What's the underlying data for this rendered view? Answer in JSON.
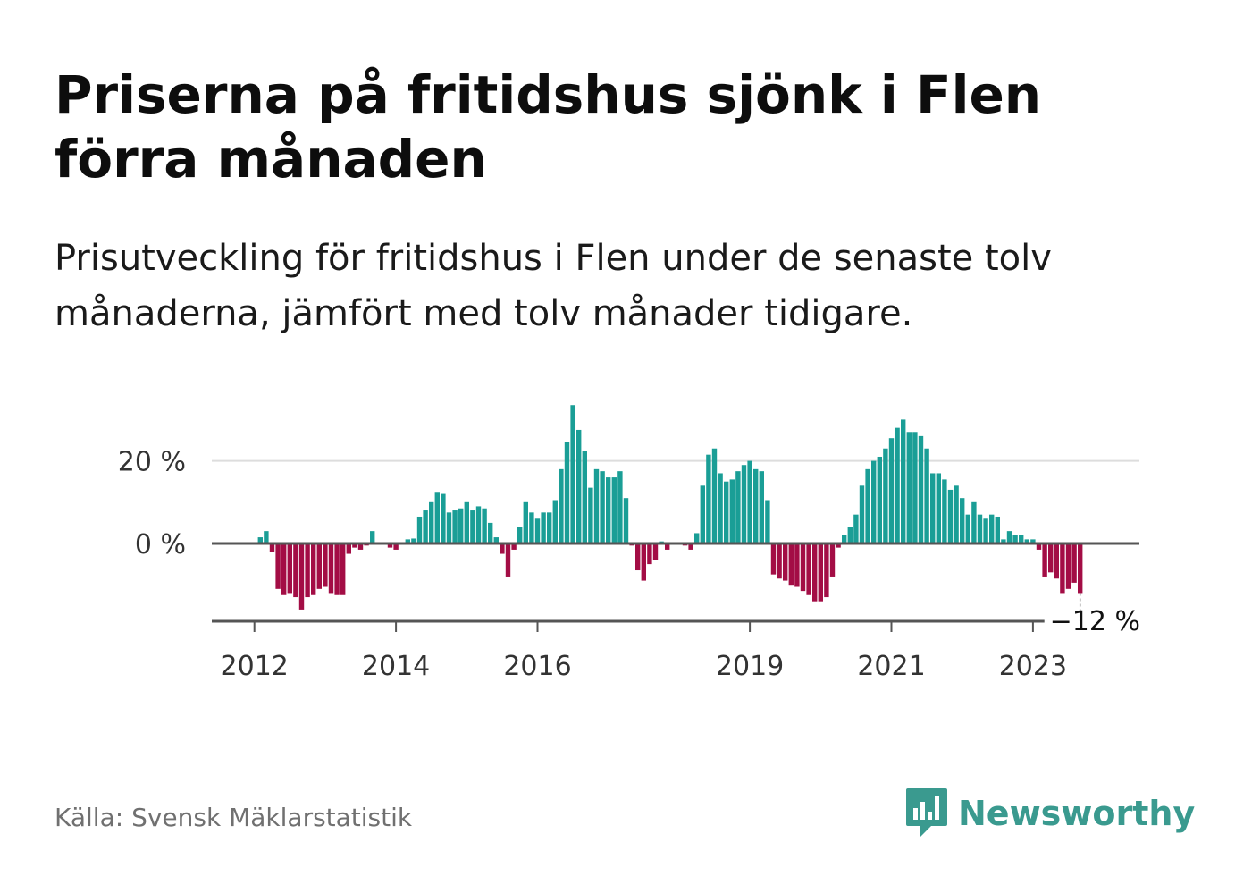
{
  "header": {
    "title": "Priserna på fritidshus sjönk i Flen förra månaden",
    "subtitle": "Prisutveckling för fritidshus i Flen under de senaste tolv månaderna, jämfört med tolv månader tidigare."
  },
  "footer": {
    "source": "Källa: Svensk Mäklarstatistik",
    "brand": "Newsworthy"
  },
  "colors": {
    "positive": "#1a9e96",
    "negative": "#a30d45",
    "grid": "#dddddd",
    "axis": "#555555",
    "brand": "#3a9a8f"
  },
  "chart_data": {
    "type": "bar",
    "x_start": "2012-01",
    "x_end": "2023-12",
    "y_unit": "%",
    "ylim": [
      -19,
      33
    ],
    "y_ticks": [
      {
        "value": 0,
        "label": "0 %"
      },
      {
        "value": 20,
        "label": "20 %"
      }
    ],
    "x_ticks": [
      {
        "date": "2012-01",
        "label": "2012"
      },
      {
        "date": "2014-01",
        "label": "2014"
      },
      {
        "date": "2016-01",
        "label": "2016"
      },
      {
        "date": "2019-01",
        "label": "2019"
      },
      {
        "date": "2021-01",
        "label": "2021"
      },
      {
        "date": "2023-01",
        "label": "2023"
      }
    ],
    "last_value_label": "−12 %",
    "values": [
      null,
      1.5,
      3,
      -2,
      -11,
      -12.5,
      -12,
      -13,
      -16,
      -13,
      -12.5,
      -11,
      -10.5,
      -12,
      -12.5,
      -12.5,
      -2.5,
      -1,
      -1.5,
      -0.5,
      3,
      0,
      0,
      -1,
      -1.5,
      0,
      1,
      1.2,
      6.5,
      8,
      10,
      12.5,
      12,
      7.5,
      8,
      8.5,
      10,
      8,
      9,
      8.5,
      5,
      1.5,
      -2.5,
      -8,
      -1.5,
      4,
      10,
      7.5,
      6,
      7.5,
      7.5,
      10.5,
      18,
      24.5,
      33.5,
      27.5,
      22.5,
      13.5,
      18,
      17.5,
      16,
      16,
      17.5,
      11,
      -0.5,
      -6.5,
      -9,
      -5,
      -4,
      0.5,
      -1.5,
      0,
      0,
      -0.5,
      -1.5,
      2.5,
      14,
      21.5,
      23,
      17,
      15,
      15.5,
      17.5,
      19,
      20,
      18,
      17.5,
      10.5,
      -7.5,
      -8.5,
      -9,
      -10,
      -10.5,
      -11.5,
      -12.5,
      -14,
      -14,
      -13,
      -8,
      -1,
      2,
      4,
      7,
      14,
      18,
      20,
      21,
      23,
      25.5,
      28,
      30,
      27,
      27,
      26,
      23,
      17,
      17,
      15.5,
      13,
      14,
      11,
      7,
      10,
      7,
      6,
      7,
      6.5,
      1,
      3,
      2,
      2,
      1,
      1,
      -1.5,
      -8,
      -7,
      -8.5,
      -12,
      -11,
      -9.5,
      -12
    ]
  }
}
